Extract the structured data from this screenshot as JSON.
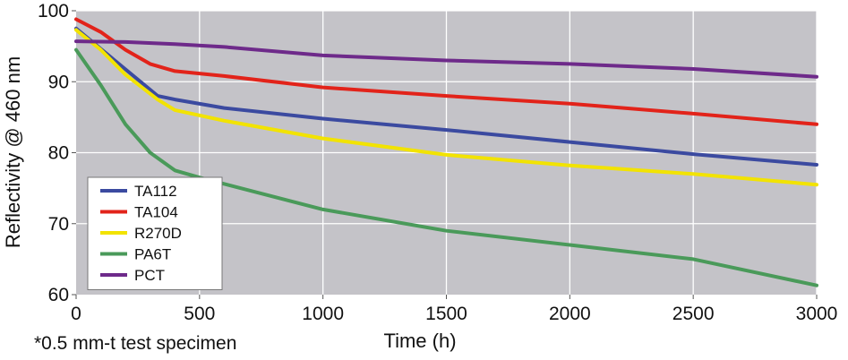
{
  "chart_data": {
    "type": "line",
    "title": "",
    "xlabel": "Time (h)",
    "ylabel": "Reflectivity @ 460 nm",
    "xlim": [
      0,
      3000
    ],
    "ylim": [
      60,
      100
    ],
    "xticks": [
      0,
      500,
      1000,
      1500,
      2000,
      2500,
      3000
    ],
    "yticks": [
      60,
      70,
      80,
      90,
      100
    ],
    "grid": true,
    "plot_background": "#c4c3c8",
    "legend_position": "bottom-left",
    "footnote": "*0.5 mm-t test specimen",
    "series": [
      {
        "name": "TA112",
        "color": "#3b4aa0",
        "x": [
          0,
          330,
          400,
          600,
          1000,
          1500,
          2000,
          2500,
          3000
        ],
        "y": [
          97.5,
          88.0,
          87.5,
          86.3,
          84.8,
          83.2,
          81.5,
          79.8,
          78.3
        ]
      },
      {
        "name": "TA104",
        "color": "#e2231a",
        "x": [
          0,
          100,
          200,
          300,
          400,
          600,
          1000,
          1500,
          2000,
          2500,
          3000
        ],
        "y": [
          98.8,
          97.0,
          94.5,
          92.5,
          91.5,
          90.8,
          89.2,
          88.0,
          86.9,
          85.5,
          84.0
        ]
      },
      {
        "name": "R270D",
        "color": "#f2e300",
        "x": [
          0,
          100,
          200,
          330,
          400,
          600,
          1000,
          1500,
          2000,
          2500,
          3000
        ],
        "y": [
          97.3,
          94.5,
          91.0,
          87.5,
          86.0,
          84.5,
          82.0,
          79.7,
          78.2,
          77.0,
          75.5
        ]
      },
      {
        "name": "PA6T",
        "color": "#4a9a5a",
        "x": [
          0,
          100,
          200,
          300,
          400,
          500,
          1000,
          1500,
          2000,
          2500,
          3000
        ],
        "y": [
          94.5,
          89.5,
          84.0,
          80.0,
          77.5,
          76.5,
          72.0,
          69.0,
          67.0,
          65.0,
          61.3
        ]
      },
      {
        "name": "PCT",
        "color": "#6e2a8a",
        "x": [
          0,
          200,
          400,
          600,
          1000,
          1500,
          2000,
          2500,
          3000
        ],
        "y": [
          95.7,
          95.6,
          95.3,
          94.9,
          93.7,
          93.0,
          92.5,
          91.8,
          90.7
        ]
      }
    ]
  }
}
